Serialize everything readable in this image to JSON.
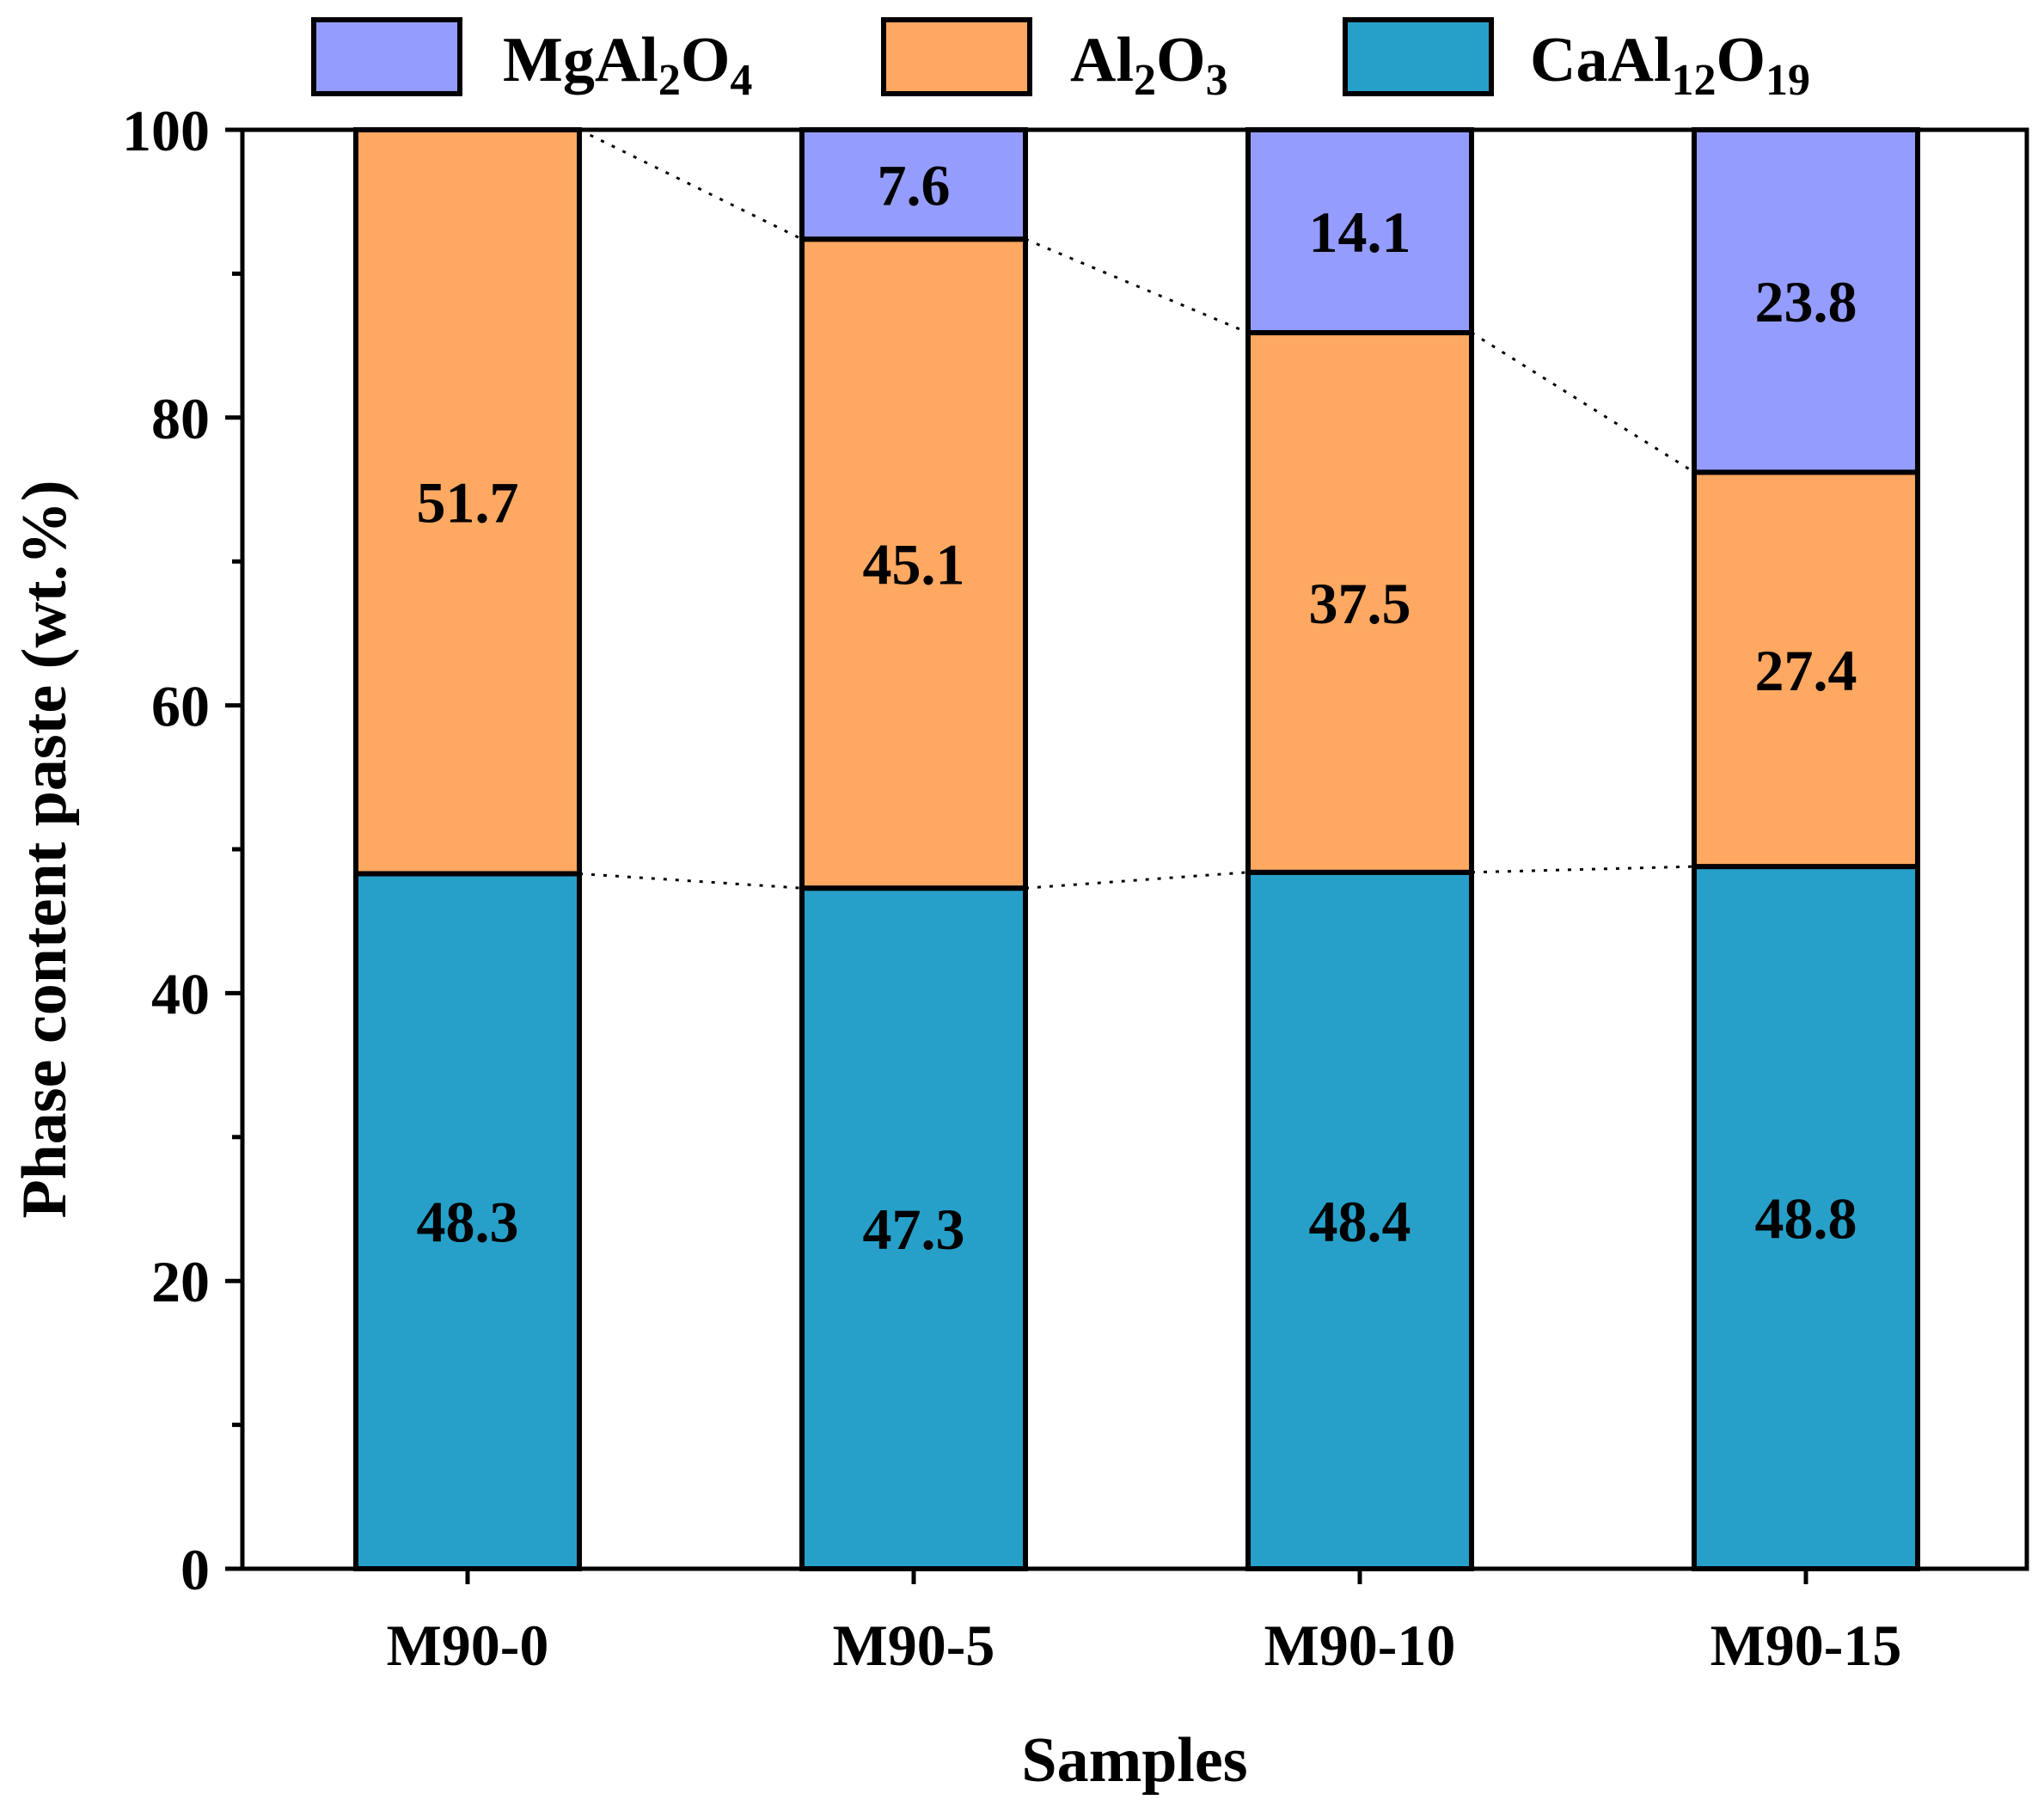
{
  "chart_data": {
    "type": "bar",
    "stacked": true,
    "title": "",
    "xlabel": "Samples",
    "ylabel": "Phase content paste (wt.%)",
    "ylim": [
      0,
      100
    ],
    "yticks": [
      0,
      20,
      40,
      60,
      80,
      100
    ],
    "y_minor_ticks": [
      10,
      30,
      50,
      70,
      90
    ],
    "categories": [
      "M90-0",
      "M90-5",
      "M90-10",
      "M90-15"
    ],
    "series": [
      {
        "name": "CaAl12O19",
        "base": "CaAl",
        "parts": [
          {
            "t": "12",
            "sub": true
          },
          {
            "t": "O",
            "sub": false
          },
          {
            "t": "19",
            "sub": true
          }
        ],
        "color": "#27a0c9",
        "values": [
          48.3,
          47.3,
          48.4,
          48.8
        ],
        "labels": [
          "48.3",
          "47.3",
          "48.4",
          "48.8"
        ]
      },
      {
        "name": "Al2O3",
        "base": "Al",
        "parts": [
          {
            "t": "2",
            "sub": true
          },
          {
            "t": "O",
            "sub": false
          },
          {
            "t": "3",
            "sub": true
          }
        ],
        "color": "#fea861",
        "values": [
          51.7,
          45.1,
          37.5,
          27.4
        ],
        "labels": [
          "51.7",
          "45.1",
          "37.5",
          "27.4"
        ]
      },
      {
        "name": "MgAl2O4",
        "base": "MgAl",
        "parts": [
          {
            "t": "2",
            "sub": true
          },
          {
            "t": "O",
            "sub": false
          },
          {
            "t": "4",
            "sub": true
          }
        ],
        "color": "#949dfd",
        "values": [
          0,
          7.6,
          14.1,
          23.8
        ],
        "labels": [
          "",
          "7.6",
          "14.1",
          "23.8"
        ]
      }
    ],
    "legend_order": [
      "MgAl2O4",
      "Al2O3",
      "CaAl12O19"
    ],
    "legend_position": "top",
    "connector_lines": "dotted lines linking segment boundaries between adjacent bars",
    "grid": false
  }
}
